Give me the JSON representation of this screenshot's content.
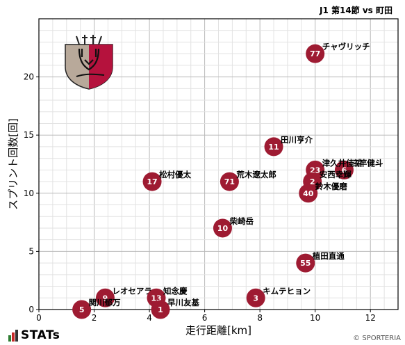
{
  "header": {
    "title": "J1 第14節 vs 町田"
  },
  "footer": {
    "brand": "STATs",
    "copyright": "© SPORTERIA"
  },
  "colors": {
    "marker": "#9e1b32",
    "marker_text": "#ffffff",
    "grid_minor": "#e2e2e2",
    "grid_major": "#b8b8b8"
  },
  "chart_data": {
    "type": "scatter",
    "title": "",
    "xlabel": "走行距離[km]",
    "ylabel": "スプリント回数[回]",
    "xlim": [
      0,
      13
    ],
    "ylim": [
      0,
      25
    ],
    "xticks": [
      0,
      2,
      4,
      6,
      8,
      10,
      12
    ],
    "yticks": [
      0,
      5,
      10,
      15,
      20
    ],
    "grid": true,
    "points": [
      {
        "number": "77",
        "name": "チャヴリッチ",
        "x": 10.0,
        "y": 22
      },
      {
        "number": "11",
        "name": "田川亨介",
        "x": 8.5,
        "y": 14
      },
      {
        "number": "6",
        "name": "三竿健斗",
        "x": 11.05,
        "y": 12
      },
      {
        "number": "23",
        "name": "津久井佳祐",
        "x": 10.0,
        "y": 12
      },
      {
        "number": "2",
        "name": "安西幸輝",
        "x": 9.9,
        "y": 11
      },
      {
        "number": "40",
        "name": "鈴木優磨",
        "x": 9.75,
        "y": 10
      },
      {
        "number": "17",
        "name": "松村優太",
        "x": 4.1,
        "y": 11
      },
      {
        "number": "71",
        "name": "荒木遼太郎",
        "x": 6.9,
        "y": 11
      },
      {
        "number": "10",
        "name": "柴崎岳",
        "x": 6.65,
        "y": 7
      },
      {
        "number": "55",
        "name": "植田直通",
        "x": 9.65,
        "y": 4
      },
      {
        "number": "9",
        "name": "レオセアラ",
        "x": 2.4,
        "y": 1
      },
      {
        "number": "5",
        "name": "関川郁万",
        "x": 1.55,
        "y": 0
      },
      {
        "number": "13",
        "name": "知念慶",
        "x": 4.25,
        "y": 1
      },
      {
        "number": "1",
        "name": "早川友基",
        "x": 4.4,
        "y": 0
      },
      {
        "number": "3",
        "name": "キムテヒョン",
        "x": 7.85,
        "y": 1
      }
    ]
  }
}
